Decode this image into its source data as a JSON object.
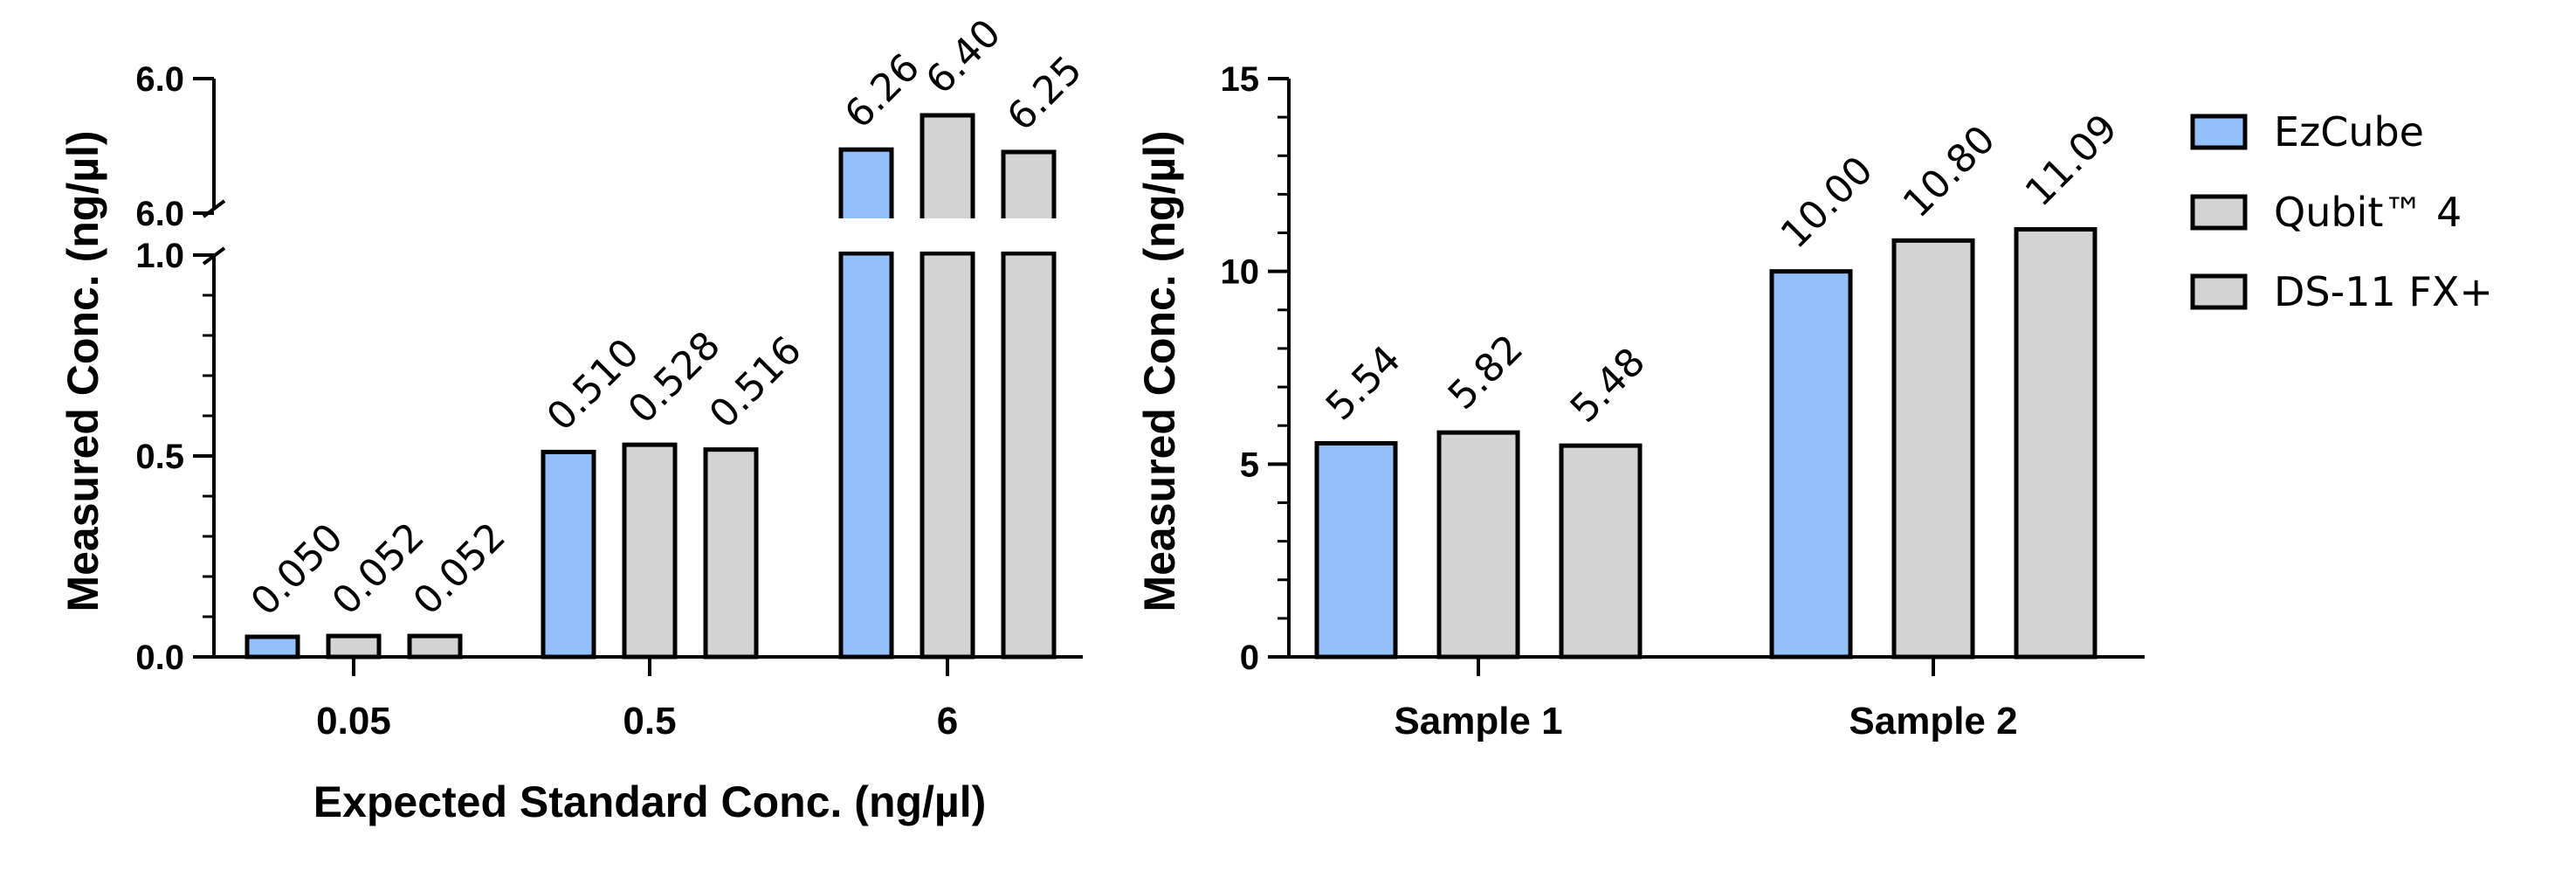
{
  "colors": {
    "ezcube": "#93C0F8",
    "qubit": "#D3D3D3",
    "ds11": "#D3D3D3"
  },
  "legend": {
    "placement": "right",
    "items": [
      {
        "label": "EzCube",
        "color": "#93C0F8"
      },
      {
        "label": "Qubit™ 4",
        "color": "#D3D3D3"
      },
      {
        "label": "DS-11 FX+",
        "color": "#D3D3D3"
      }
    ]
  },
  "chart_data": [
    {
      "type": "bar",
      "title": "",
      "xlabel": "Expected Standard Conc. (ng/µl)",
      "ylabel": "Measured Conc. (ng/µl)",
      "categories": [
        "0.05",
        "0.5",
        "6"
      ],
      "series": [
        {
          "name": "EzCube",
          "values": [
            0.05,
            0.51,
            6.26
          ],
          "labels": [
            "0.050",
            "0.510",
            "6.26"
          ]
        },
        {
          "name": "Qubit™ 4",
          "values": [
            0.052,
            0.528,
            6.4
          ],
          "labels": [
            "0.052",
            "0.528",
            "6.40"
          ]
        },
        {
          "name": "DS-11 FX+",
          "values": [
            0.052,
            0.516,
            6.25
          ],
          "labels": [
            "0.052",
            "0.516",
            "6.25"
          ]
        }
      ],
      "y_axis": {
        "broken": true,
        "lower_range": [
          0,
          1.0
        ],
        "upper_range": [
          6.0,
          6.0
        ],
        "lower_ticks": [
          "0.0",
          "0.5",
          "1.0"
        ],
        "upper_ticks": [
          "6.0",
          "6.0"
        ]
      },
      "grid": false
    },
    {
      "type": "bar",
      "title": "",
      "xlabel": "",
      "ylabel": "Measured Conc. (ng/µl)",
      "categories": [
        "Sample 1",
        "Sample 2"
      ],
      "series": [
        {
          "name": "EzCube",
          "values": [
            5.54,
            10.0
          ],
          "labels": [
            "5.54",
            "10.00"
          ]
        },
        {
          "name": "Qubit™ 4",
          "values": [
            5.82,
            10.8
          ],
          "labels": [
            "5.82",
            "10.80"
          ]
        },
        {
          "name": "DS-11 FX+",
          "values": [
            5.48,
            11.09
          ],
          "labels": [
            "5.48",
            "11.09"
          ]
        }
      ],
      "ylim": [
        0,
        15
      ],
      "y_ticks": [
        "0",
        "5",
        "10",
        "15"
      ],
      "grid": false
    }
  ]
}
